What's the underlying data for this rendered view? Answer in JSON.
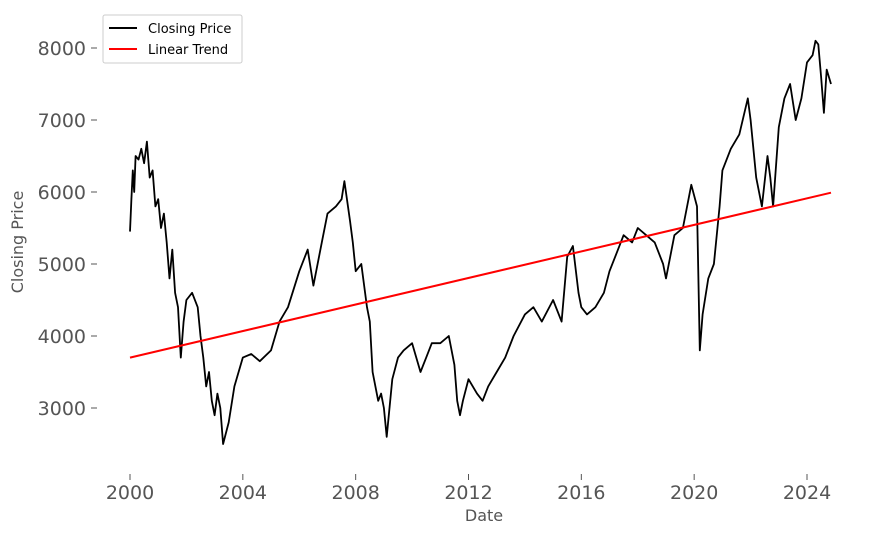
{
  "chart_data": {
    "type": "line",
    "title": "",
    "xlabel": "Date",
    "ylabel": "Closing Price",
    "xlim": [
      2000.0,
      2024.85
    ],
    "ylim": [
      2150,
      8450
    ],
    "x_ticks": [
      2000,
      2004,
      2008,
      2012,
      2016,
      2020,
      2024
    ],
    "x_tick_labels": [
      "2000",
      "2004",
      "2008",
      "2012",
      "2016",
      "2020",
      "2024"
    ],
    "y_ticks": [
      3000,
      4000,
      5000,
      6000,
      7000,
      8000
    ],
    "y_tick_labels": [
      "3000",
      "4000",
      "5000",
      "6000",
      "7000",
      "8000"
    ],
    "grid": false,
    "legend_position": "top-left",
    "series": [
      {
        "name": "Closing Price",
        "color": "#000000",
        "x": [
          2000.0,
          2000.05,
          2000.1,
          2000.15,
          2000.2,
          2000.3,
          2000.4,
          2000.5,
          2000.6,
          2000.7,
          2000.8,
          2000.9,
          2001.0,
          2001.1,
          2001.2,
          2001.3,
          2001.4,
          2001.5,
          2001.6,
          2001.7,
          2001.8,
          2001.9,
          2002.0,
          2002.2,
          2002.4,
          2002.5,
          2002.6,
          2002.7,
          2002.8,
          2002.9,
          2003.0,
          2003.1,
          2003.2,
          2003.3,
          2003.5,
          2003.7,
          2004.0,
          2004.3,
          2004.6,
          2005.0,
          2005.3,
          2005.6,
          2006.0,
          2006.3,
          2006.5,
          2006.8,
          2007.0,
          2007.3,
          2007.5,
          2007.6,
          2007.8,
          2007.9,
          2008.0,
          2008.2,
          2008.4,
          2008.5,
          2008.6,
          2008.8,
          2008.9,
          2009.0,
          2009.1,
          2009.2,
          2009.3,
          2009.5,
          2009.7,
          2010.0,
          2010.3,
          2010.5,
          2010.7,
          2011.0,
          2011.3,
          2011.5,
          2011.6,
          2011.7,
          2011.8,
          2012.0,
          2012.3,
          2012.5,
          2012.7,
          2013.0,
          2013.3,
          2013.6,
          2014.0,
          2014.3,
          2014.6,
          2015.0,
          2015.3,
          2015.5,
          2015.7,
          2015.9,
          2016.0,
          2016.2,
          2016.5,
          2016.8,
          2017.0,
          2017.3,
          2017.5,
          2017.8,
          2018.0,
          2018.3,
          2018.6,
          2018.9,
          2019.0,
          2019.3,
          2019.6,
          2019.9,
          2020.1,
          2020.2,
          2020.3,
          2020.5,
          2020.7,
          2020.9,
          2021.0,
          2021.3,
          2021.6,
          2021.9,
          2022.0,
          2022.2,
          2022.4,
          2022.6,
          2022.7,
          2022.8,
          2023.0,
          2023.2,
          2023.4,
          2023.6,
          2023.8,
          2024.0,
          2024.2,
          2024.3,
          2024.4,
          2024.5,
          2024.6,
          2024.7,
          2024.85
        ],
        "y": [
          5450,
          5900,
          6300,
          6000,
          6500,
          6450,
          6600,
          6400,
          6700,
          6200,
          6300,
          5800,
          5900,
          5500,
          5700,
          5300,
          4800,
          5200,
          4600,
          4400,
          3700,
          4200,
          4500,
          4600,
          4400,
          4000,
          3700,
          3300,
          3500,
          3100,
          2900,
          3200,
          3000,
          2500,
          2800,
          3300,
          3700,
          3750,
          3650,
          3800,
          4200,
          4400,
          4900,
          5200,
          4700,
          5300,
          5700,
          5800,
          5900,
          6150,
          5600,
          5300,
          4900,
          5000,
          4400,
          4200,
          3500,
          3100,
          3200,
          3000,
          2600,
          3000,
          3400,
          3700,
          3800,
          3900,
          3500,
          3700,
          3900,
          3900,
          4000,
          3600,
          3100,
          2900,
          3100,
          3400,
          3200,
          3100,
          3300,
          3500,
          3700,
          4000,
          4300,
          4400,
          4200,
          4500,
          4200,
          5100,
          5250,
          4600,
          4400,
          4300,
          4400,
          4600,
          4900,
          5200,
          5400,
          5300,
          5500,
          5400,
          5300,
          5000,
          4800,
          5400,
          5500,
          6100,
          5800,
          3800,
          4300,
          4800,
          5000,
          5800,
          6300,
          6600,
          6800,
          7300,
          7000,
          6200,
          5800,
          6500,
          6200,
          5800,
          6900,
          7300,
          7500,
          7000,
          7300,
          7800,
          7900,
          8100,
          8050,
          7600,
          7100,
          7700,
          7500
        ]
      },
      {
        "name": "Linear Trend",
        "color": "#ff0000",
        "x": [
          2000.0,
          2024.85
        ],
        "y": [
          3700,
          5990
        ]
      }
    ]
  }
}
